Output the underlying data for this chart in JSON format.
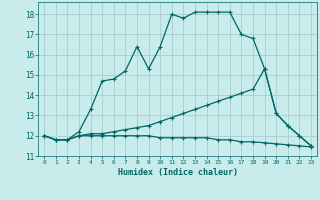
{
  "xlabel": "Humidex (Indice chaleur)",
  "xlim": [
    -0.5,
    23.5
  ],
  "ylim": [
    11,
    18.6
  ],
  "yticks": [
    11,
    12,
    13,
    14,
    15,
    16,
    17,
    18
  ],
  "xticks": [
    0,
    1,
    2,
    3,
    4,
    5,
    6,
    7,
    8,
    9,
    10,
    11,
    12,
    13,
    14,
    15,
    16,
    17,
    18,
    19,
    20,
    21,
    22,
    23
  ],
  "bg_color": "#c8ecec",
  "grid_color": "#b8d8d8",
  "line_color": "#006666",
  "line1_x": [
    0,
    1,
    2,
    3,
    4,
    5,
    6,
    7,
    8,
    9,
    10,
    11,
    12,
    13,
    14,
    15,
    16,
    17,
    18,
    19,
    20,
    21,
    22,
    23
  ],
  "line1_y": [
    12.0,
    11.8,
    11.8,
    12.2,
    13.3,
    14.7,
    14.8,
    15.2,
    16.4,
    15.3,
    16.4,
    18.0,
    17.8,
    18.1,
    18.1,
    18.1,
    18.1,
    17.0,
    16.8,
    15.3,
    13.1,
    12.5,
    12.0,
    11.5
  ],
  "line2_x": [
    0,
    1,
    2,
    3,
    4,
    5,
    6,
    7,
    8,
    9,
    10,
    11,
    12,
    13,
    14,
    15,
    16,
    17,
    18,
    19,
    20,
    21,
    22,
    23
  ],
  "line2_y": [
    12.0,
    11.8,
    11.8,
    12.0,
    12.1,
    12.1,
    12.2,
    12.3,
    12.4,
    12.5,
    12.7,
    12.9,
    13.1,
    13.3,
    13.5,
    13.7,
    13.9,
    14.1,
    14.3,
    15.3,
    13.1,
    12.5,
    12.0,
    11.5
  ],
  "line3_x": [
    0,
    1,
    2,
    3,
    4,
    5,
    6,
    7,
    8,
    9,
    10,
    11,
    12,
    13,
    14,
    15,
    16,
    17,
    18,
    19,
    20,
    21,
    22,
    23
  ],
  "line3_y": [
    12.0,
    11.8,
    11.8,
    12.0,
    12.0,
    12.0,
    12.0,
    12.0,
    12.0,
    12.0,
    11.9,
    11.9,
    11.9,
    11.9,
    11.9,
    11.8,
    11.8,
    11.7,
    11.7,
    11.65,
    11.6,
    11.55,
    11.5,
    11.45
  ]
}
